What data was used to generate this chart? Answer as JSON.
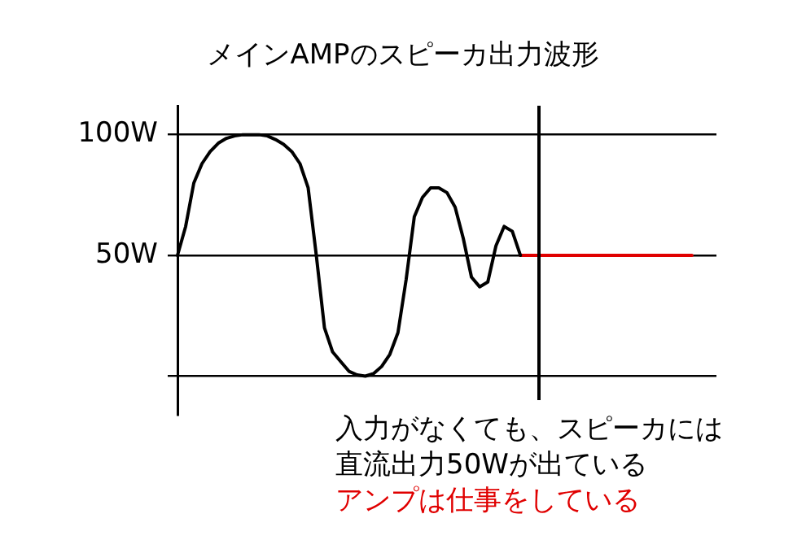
{
  "chart_data": {
    "type": "line",
    "title": "メインAMPのスピーカ出力波形",
    "categories": [
      null,
      null,
      null,
      null,
      null,
      null,
      null,
      null,
      null,
      null,
      null,
      null,
      null,
      null,
      null,
      null,
      null,
      null,
      null,
      null,
      null,
      null,
      null,
      null,
      null,
      null,
      null,
      null,
      null,
      null,
      null,
      null,
      null,
      null,
      null,
      null,
      null,
      null,
      null,
      null,
      null,
      null,
      null,
      null,
      null,
      null,
      null,
      null,
      null,
      null,
      null,
      null,
      null,
      null,
      null,
      null,
      null,
      null,
      null,
      null,
      null,
      null,
      null,
      null,
      null,
      null,
      null
    ],
    "ylim": [
      -16,
      112
    ],
    "yticks": [
      {
        "value": 0,
        "label": null
      },
      {
        "value": 50,
        "label": "50W"
      },
      {
        "value": 100,
        "label": "100W"
      }
    ],
    "tick_labels": "y",
    "grid": "y",
    "marker": "none",
    "line_style": "solid",
    "series": [
      {
        "color": "#000000",
        "values": [
          50,
          62,
          80,
          88,
          93,
          96.5,
          98.5,
          99.5,
          100,
          100,
          100,
          99.5,
          98,
          96,
          93,
          88,
          78,
          50,
          20,
          10,
          6,
          2,
          0.5,
          0,
          1,
          4,
          9,
          18,
          40,
          66,
          74,
          78,
          78,
          76,
          70,
          57,
          41,
          37,
          39,
          54,
          62,
          60,
          50,
          null,
          null,
          null,
          null,
          null,
          null,
          null,
          null,
          null,
          null,
          null,
          null,
          null,
          null,
          null,
          null,
          null,
          null,
          null,
          null,
          null,
          null,
          null,
          null
        ]
      },
      {
        "color": "#e00000",
        "values": [
          null,
          null,
          null,
          null,
          null,
          null,
          null,
          null,
          null,
          null,
          null,
          null,
          null,
          null,
          null,
          null,
          null,
          null,
          null,
          null,
          null,
          null,
          null,
          null,
          null,
          null,
          null,
          null,
          null,
          null,
          null,
          null,
          null,
          null,
          null,
          null,
          null,
          null,
          null,
          null,
          null,
          null,
          50,
          50,
          50,
          50,
          50,
          50,
          50,
          50,
          50,
          50,
          50,
          50,
          50,
          50,
          50,
          50,
          50,
          50,
          50,
          50,
          50,
          50,
          null,
          null,
          null
        ]
      }
    ],
    "annotations": [
      "入力がなくても、スピーカには",
      "直流出力50Wが出ている",
      "アンプは仕事をしている"
    ]
  }
}
